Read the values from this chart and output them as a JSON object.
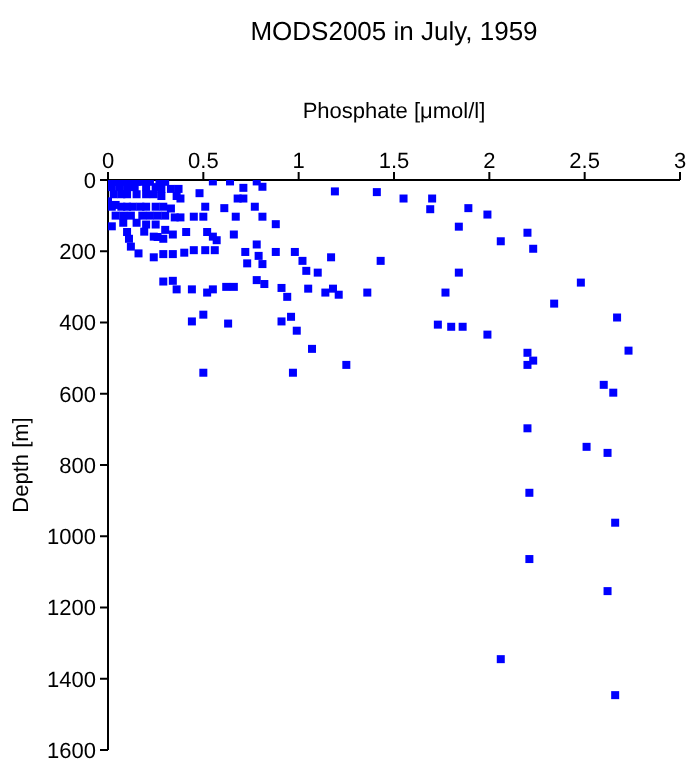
{
  "chart_data": {
    "type": "scatter",
    "title": "MODS2005 in July, 1959",
    "xlabel": "Phosphate [μmol/l]",
    "ylabel": "Depth [m]",
    "xlim": [
      0,
      3
    ],
    "xticks": [
      0,
      0.5,
      1,
      1.5,
      2,
      2.5,
      3
    ],
    "ylim": [
      1600,
      0
    ],
    "yticks": [
      0,
      200,
      400,
      600,
      800,
      1000,
      1200,
      1400,
      1600
    ],
    "marker": "square",
    "series": [
      {
        "color": "#0000ff",
        "x": [
          1.19,
          1.41,
          1.55,
          1.7,
          1.69,
          1.89,
          1.99,
          1.84,
          2.2,
          2.06,
          2.23,
          1.02,
          1.17,
          1.43,
          1.04,
          1.1,
          1.84,
          2.48,
          1.05,
          1.14,
          1.18,
          1.21,
          1.36,
          1.77,
          2.34,
          2.67,
          1.73,
          1.8,
          1.86,
          1.99,
          1.07,
          1.25,
          2.2,
          2.23,
          2.2,
          2.73,
          2.6,
          2.65,
          2.2,
          2.51,
          2.62,
          2.21,
          2.66,
          2.21,
          2.62,
          2.06,
          2.66,
          0.55,
          0.64,
          0.78,
          0.81,
          0.71,
          0.48,
          0.38,
          0.71,
          0.68,
          0.51,
          0.61,
          0.77,
          0.67,
          0.81,
          0.88,
          0.45,
          0.5,
          0.41,
          0.52,
          0.55,
          0.57,
          0.66,
          0.78,
          0.88,
          0.98,
          0.72,
          0.79,
          0.73,
          0.81,
          0.56,
          0.51,
          0.45,
          0.4,
          0.34,
          0.29,
          0.24,
          0.16,
          0.12,
          0.11,
          0.1,
          0.24,
          0.29,
          0.34,
          0.29,
          0.34,
          0.36,
          0.44,
          0.52,
          0.55,
          0.62,
          0.66,
          0.78,
          0.82,
          0.91,
          0.94,
          0.44,
          0.5,
          0.63,
          0.91,
          0.96,
          0.99,
          0.5,
          0.97,
          0.02,
          0.05,
          0.08,
          0.12,
          0.15,
          0.18,
          0.22,
          0.27,
          0.3,
          0.02,
          0.06,
          0.1,
          0.14,
          0.2,
          0.25,
          0.28,
          0.33,
          0.37,
          0.03,
          0.07,
          0.1,
          0.15,
          0.2,
          0.24,
          0.28,
          0.36,
          0.02,
          0.07,
          0.1,
          0.13,
          0.17,
          0.2,
          0.25,
          0.29,
          0.33,
          0.04,
          0.08,
          0.12,
          0.18,
          0.22,
          0.26,
          0.3,
          0.35,
          0.38,
          0.08,
          0.15,
          0.2,
          0.25,
          0.3,
          0.19,
          0.26,
          0.04,
          0.0,
          0.02
        ],
        "values": [
          32,
          34,
          52,
          52,
          82,
          79,
          97,
          131,
          148,
          172,
          193,
          227,
          217,
          227,
          255,
          260,
          260,
          288,
          305,
          316,
          305,
          322,
          316,
          316,
          347,
          386,
          406,
          412,
          412,
          434,
          474,
          519,
          485,
          507,
          519,
          479,
          575,
          597,
          697,
          749,
          766,
          878,
          962,
          1064,
          1154,
          1345,
          1446,
          4,
          4,
          4,
          19,
          22,
          37,
          52,
          52,
          52,
          75,
          79,
          75,
          103,
          103,
          124,
          103,
          103,
          146,
          146,
          159,
          169,
          153,
          181,
          202,
          202,
          202,
          213,
          234,
          236,
          197,
          197,
          197,
          204,
          208,
          208,
          217,
          206,
          187,
          165,
          146,
          159,
          165,
          153,
          285,
          283,
          307,
          307,
          316,
          307,
          300,
          300,
          281,
          292,
          303,
          328,
          397,
          378,
          403,
          397,
          384,
          423,
          541,
          541,
          5,
          5,
          5,
          5,
          5,
          5,
          5,
          5,
          5,
          20,
          20,
          20,
          20,
          20,
          20,
          25,
          25,
          25,
          40,
          40,
          40,
          40,
          40,
          40,
          45,
          45,
          75,
          75,
          75,
          75,
          75,
          75,
          75,
          75,
          80,
          100,
          100,
          100,
          100,
          100,
          100,
          100,
          105,
          105,
          120,
          120,
          125,
          125,
          140,
          145,
          160,
          70,
          60,
          130
        ]
      }
    ]
  }
}
